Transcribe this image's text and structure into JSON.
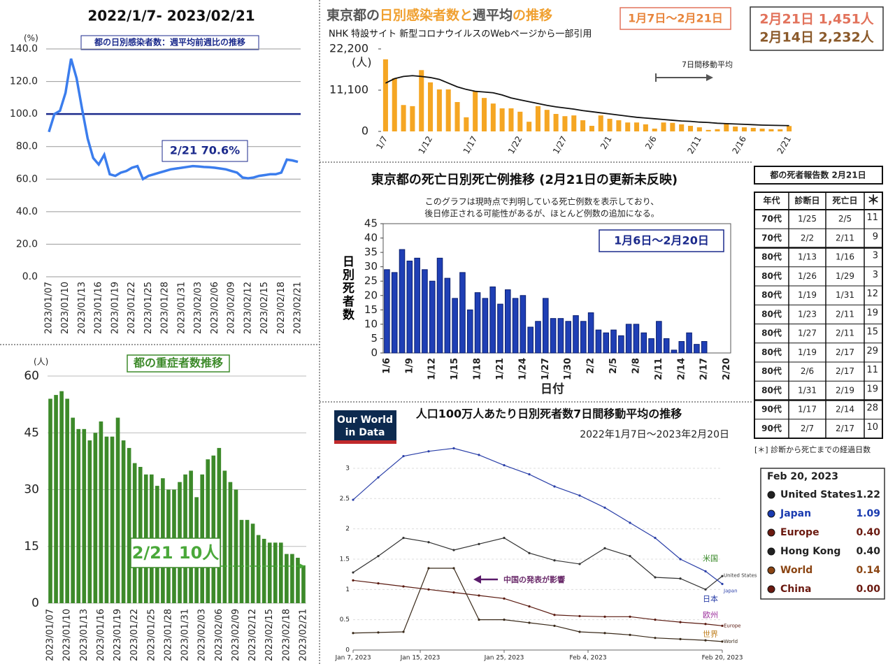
{
  "chart_data": [
    {
      "type": "line",
      "title": "2022/1/7- 2023/02/21",
      "inset_title": "都の日別感染者数：週平均前週比の推移",
      "y_unit": "(%)",
      "annotation": "2/21 70.6%",
      "categories": [
        "2023/01/07",
        null,
        null,
        "2023/01/10",
        null,
        null,
        "2023/01/13",
        null,
        null,
        "2023/01/16",
        null,
        null,
        "2023/01/19",
        null,
        null,
        "2023/01/22",
        null,
        null,
        "2023/01/25",
        null,
        null,
        "2023/01/28",
        null,
        null,
        "2023/01/31",
        null,
        null,
        "2023/02/03",
        null,
        null,
        "2023/02/06",
        null,
        null,
        "2023/02/09",
        null,
        null,
        "2023/02/12",
        null,
        null,
        "2023/02/15",
        null,
        null,
        "2023/02/18",
        null,
        null,
        "2023/02/21"
      ],
      "values": [
        89,
        100,
        102,
        113,
        134,
        122,
        103,
        85,
        73,
        69,
        75,
        63,
        62,
        64,
        65,
        67,
        68,
        60,
        62,
        63,
        64,
        65,
        66,
        66.5,
        67,
        67.5,
        68,
        67.8,
        67.5,
        67.3,
        67,
        66.5,
        66,
        65,
        64,
        61,
        60.5,
        61,
        62,
        62.5,
        63,
        63,
        64,
        72,
        71.5,
        70.6
      ],
      "color": "#3b7ded",
      "reference_line": 100,
      "reference_color": "#1b2a8c",
      "ylim": [
        0,
        140
      ],
      "yticks": [
        {
          "value": 0,
          "label": "0.0"
        },
        {
          "value": 20,
          "label": "20.0"
        },
        {
          "value": 40,
          "label": "40.0"
        },
        {
          "value": 60,
          "label": "60.0"
        },
        {
          "value": 80,
          "label": "80.0"
        },
        {
          "value": 100,
          "label": "100.0"
        },
        {
          "value": 120,
          "label": "120.0"
        },
        {
          "value": 140,
          "label": "140.0"
        }
      ],
      "grid": true
    },
    {
      "type": "combo",
      "title_parts": [
        {
          "text": "東京都の",
          "color": "#555555"
        },
        {
          "text": "日別感染者数と",
          "color": "#f0a030"
        },
        {
          "text": "週平均",
          "color": "#555555"
        },
        {
          "text": "の推移",
          "color": "#f0a030"
        }
      ],
      "subtitle": "NHK 特設サイト 新型コロナウイルスのWebページから一部引用",
      "period": "1月7日〜2月21日",
      "callouts": [
        {
          "text": "2月21日 1,451人",
          "color": "#e2725b"
        },
        {
          "text": "2月14日 2,232人",
          "color": "#8b5a2b"
        }
      ],
      "annotation": "7日間移動平均",
      "y_unit": "(人)",
      "categories": [
        "1/7",
        null,
        null,
        null,
        null,
        "1/12",
        null,
        null,
        null,
        null,
        "1/17",
        null,
        null,
        null,
        null,
        "1/22",
        null,
        null,
        null,
        null,
        "1/27",
        null,
        null,
        null,
        null,
        "2/1",
        null,
        null,
        null,
        null,
        "2/6",
        null,
        null,
        null,
        null,
        "2/11",
        null,
        null,
        null,
        null,
        "2/16",
        null,
        null,
        null,
        null,
        "2/21"
      ],
      "series": [
        {
          "type": "bar",
          "color": "#f5a623",
          "values": [
            19400,
            14300,
            7100,
            6800,
            16500,
            13200,
            11300,
            11300,
            7900,
            3800,
            10900,
            9000,
            7500,
            6200,
            6200,
            5300,
            2600,
            6800,
            5800,
            4700,
            4100,
            4300,
            3000,
            1500,
            4300,
            3400,
            3000,
            2400,
            2400,
            1900,
            750,
            2400,
            2300,
            1900,
            1500,
            1100,
            400,
            600,
            2232,
            1300,
            1100,
            950,
            750,
            600,
            560,
            1451
          ]
        },
        {
          "type": "line",
          "color": "#111111",
          "values": [
            13000,
            14200,
            14800,
            15000,
            14800,
            14500,
            14000,
            13000,
            12000,
            11300,
            10800,
            10600,
            10400,
            9800,
            9000,
            8500,
            8000,
            7500,
            7000,
            6600,
            6300,
            6000,
            5600,
            5300,
            5000,
            4700,
            4400,
            4100,
            3800,
            3600,
            3400,
            3200,
            3000,
            2800,
            2700,
            2500,
            2400,
            2200,
            2100,
            2000,
            1900,
            1800,
            1700,
            1650,
            1600,
            1550
          ]
        }
      ],
      "ylim": [
        0,
        22200
      ],
      "yticks": [
        0,
        {
          "value": 11100,
          "label": "11,100"
        },
        {
          "value": 22200,
          "label": "22,200"
        }
      ],
      "grid": false
    },
    {
      "type": "bar",
      "title": "東京都の死亡日別死亡例推移 (2月21日の更新未反映)",
      "notes": [
        "このグラフは現時点で判明している死亡例数を表示しており、",
        "後日修正される可能性があるが、ほとんど例数の追加になる。"
      ],
      "period": "1月6日〜2月20日",
      "x_label": "日付",
      "y_label": "日別死者数",
      "categories": [
        "1/6",
        null,
        null,
        "1/9",
        null,
        null,
        "1/12",
        null,
        null,
        "1/15",
        null,
        null,
        "1/18",
        null,
        null,
        "1/21",
        null,
        null,
        "1/24",
        null,
        null,
        "1/27",
        null,
        null,
        "1/30",
        null,
        null,
        "2/2",
        null,
        null,
        "2/5",
        null,
        null,
        "2/8",
        null,
        null,
        "2/11",
        null,
        null,
        "2/14",
        null,
        null,
        "2/17",
        null,
        null,
        "2/20"
      ],
      "values": [
        29,
        28,
        36,
        32,
        33,
        29,
        25,
        33,
        26,
        19,
        28,
        15,
        21,
        19,
        23,
        17,
        22,
        19,
        20,
        9,
        11,
        19,
        12,
        12,
        11,
        13,
        11,
        14,
        8,
        7,
        8,
        6,
        10,
        10,
        7,
        5,
        11,
        5,
        1,
        4,
        7,
        3,
        4,
        0,
        0,
        0
      ],
      "color": "#1f3fb5",
      "ylim": [
        0,
        45
      ],
      "yticks": [
        0,
        5,
        10,
        15,
        20,
        25,
        30,
        35,
        40,
        45
      ],
      "grid": false
    },
    {
      "type": "bar",
      "title": "都の重症者数推移",
      "y_unit": "(人)",
      "annotation": "2/21 10人",
      "categories": [
        "2023/01/07",
        null,
        null,
        "2023/01/10",
        null,
        null,
        "2023/01/13",
        null,
        null,
        "2023/01/16",
        null,
        null,
        "2023/01/19",
        null,
        null,
        "2023/01/22",
        null,
        null,
        "2023/01/25",
        null,
        null,
        "2023/01/28",
        null,
        null,
        "2023/01/31",
        null,
        null,
        "2023/02/03",
        null,
        null,
        "2023/02/06",
        null,
        null,
        "2023/02/09",
        null,
        null,
        "2023/02/12",
        null,
        null,
        "2023/02/15",
        null,
        null,
        "2023/02/18",
        null,
        null,
        "2023/02/21"
      ],
      "values": [
        54,
        55,
        56,
        54,
        49,
        46,
        46,
        43,
        45,
        48,
        44,
        44,
        49,
        43,
        41,
        37,
        36,
        34,
        34,
        31,
        33,
        30,
        30,
        32,
        34,
        35,
        28,
        34,
        38,
        39,
        41,
        35,
        32,
        30,
        22,
        22,
        21,
        18,
        17,
        16,
        16,
        16,
        13,
        13,
        12,
        10
      ],
      "color": "#3d8a2a",
      "ylim": [
        0,
        60
      ],
      "yticks": [
        0,
        15,
        30,
        45,
        60
      ],
      "grid": true
    },
    {
      "type": "line",
      "logo": [
        "Our World",
        "in Data"
      ],
      "title": "人口100万人あたり日別死者数7日間移動平均の推移",
      "subtitle": "2022年1月7日〜2023年2月20日",
      "annotation": "中国の発表が影響",
      "x": [
        "2023-01-07",
        "2023-01-10",
        "2023-01-13",
        "2023-01-16",
        "2023-01-19",
        "2023-01-22",
        "2023-01-25",
        "2023-01-28",
        "2023-01-31",
        "2023-02-03",
        "2023-02-06",
        "2023-02-09",
        "2023-02-12",
        "2023-02-15",
        "2023-02-18",
        "2023-02-20"
      ],
      "series": [
        {
          "name": "United States",
          "label": "米国",
          "color": "#333333",
          "label_color": "#3a8a2a",
          "values": [
            1.28,
            1.55,
            1.85,
            1.78,
            1.65,
            1.75,
            1.85,
            1.6,
            1.48,
            1.42,
            1.68,
            1.55,
            1.2,
            1.18,
            1.0,
            1.22
          ]
        },
        {
          "name": "Japan",
          "label": "日本",
          "color": "#2a3fa8",
          "label_color": "#2a3fa8",
          "values": [
            2.48,
            2.85,
            3.2,
            3.28,
            3.33,
            3.22,
            3.05,
            2.9,
            2.7,
            2.55,
            2.35,
            2.1,
            1.85,
            1.5,
            1.3,
            1.09
          ]
        },
        {
          "name": "Europe",
          "label": "欧州",
          "color": "#5a1a10",
          "label_color": "#9a2a9a",
          "values": [
            1.15,
            1.1,
            1.05,
            1.0,
            0.95,
            0.9,
            0.85,
            0.72,
            0.58,
            0.56,
            0.55,
            0.55,
            0.5,
            0.46,
            0.43,
            0.4
          ]
        },
        {
          "name": "World",
          "label": "世界",
          "color": "#3a2a1a",
          "label_color": "#c08020",
          "values": [
            0.28,
            0.29,
            0.3,
            1.35,
            1.35,
            0.5,
            0.5,
            0.45,
            0.4,
            0.3,
            0.28,
            0.25,
            0.2,
            0.18,
            0.16,
            0.14
          ]
        }
      ],
      "xlim": [
        "2023-01-07",
        "2023-02-20"
      ],
      "xticks": [
        {
          "value": "2023-01-07",
          "label": "Jan 7, 2023"
        },
        {
          "value": "2023-01-15",
          "label": "Jan 15, 2023"
        },
        {
          "value": "2023-01-25",
          "label": "Jan 25, 2023"
        },
        {
          "value": "2023-02-04",
          "label": "Feb 4, 2023"
        },
        {
          "value": "2023-02-20",
          "label": "Feb 20, 2023"
        }
      ],
      "ylim": [
        0,
        3.4
      ],
      "yticks": [
        0,
        0.5,
        1,
        1.5,
        2,
        2.5,
        3
      ],
      "grid": true,
      "legend_box": {
        "title": "Feb 20, 2023",
        "rows": [
          {
            "name": "United States",
            "value": "1.22",
            "color": "#222222"
          },
          {
            "name": "Japan",
            "value": "1.09",
            "color": "#1a3bb0"
          },
          {
            "name": "Europe",
            "value": "0.40",
            "color": "#6b1a10"
          },
          {
            "name": "Hong Kong",
            "value": "0.40",
            "color": "#222222"
          },
          {
            "name": "World",
            "value": "0.14",
            "color": "#8b4513"
          },
          {
            "name": "China",
            "value": "0.00",
            "color": "#6b1a10"
          }
        ]
      }
    }
  ],
  "table": {
    "title": "都の死者報告数 2月21日",
    "header": [
      "年代",
      "診断日",
      "死亡日",
      "＊"
    ],
    "rows": [
      [
        "70代",
        "1/25",
        "2/5",
        "11"
      ],
      [
        "70代",
        "2/2",
        "2/11",
        "9"
      ],
      [
        "80代",
        "1/13",
        "1/16",
        "3"
      ],
      [
        "80代",
        "1/26",
        "1/29",
        "3"
      ],
      [
        "80代",
        "1/19",
        "1/31",
        "12"
      ],
      [
        "80代",
        "1/23",
        "2/11",
        "19"
      ],
      [
        "80代",
        "1/27",
        "2/11",
        "15"
      ],
      [
        "80代",
        "1/19",
        "2/17",
        "29"
      ],
      [
        "80代",
        "2/6",
        "2/17",
        "11"
      ],
      [
        "80代",
        "1/31",
        "2/19",
        "19"
      ],
      [
        "90代",
        "1/17",
        "2/14",
        "28"
      ],
      [
        "90代",
        "2/7",
        "2/17",
        "10"
      ]
    ],
    "note": "[＊] 診断から死亡までの経過日数"
  }
}
